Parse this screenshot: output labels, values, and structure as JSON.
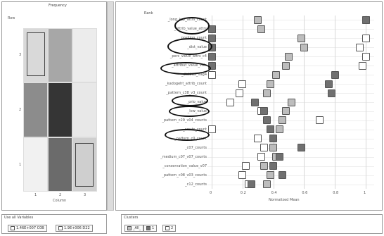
{
  "left": {
    "title": "Frequency",
    "row_axis": "Row",
    "col_axis": "Column",
    "row_ticks": [
      "3",
      "2",
      "1"
    ],
    "col_ticks": [
      "1",
      "2",
      "3"
    ],
    "heatmap": [
      [
        "#d9d9d9",
        "#a7a7a7",
        "#ececec"
      ],
      [
        "#8c8c8c",
        "#353535",
        "#e8e8e8"
      ],
      [
        "#f1f1f1",
        "#6b6b6b",
        "#cfcfcf"
      ]
    ],
    "scrollbar_label": "Use all Variables",
    "legend_items": [
      "1.46E+007 C0B",
      "1.9E+006 D22"
    ]
  },
  "right": {
    "title": "Rank",
    "x_label": "Normalized Mean",
    "x_ticks": [
      "0",
      "0.2",
      "0.4",
      "0.6",
      "0.8",
      "1"
    ],
    "row_labels": [
      "_long_key_attrs_count",
      "_attrib_value_attrs",
      "_position_count",
      "_dist_value",
      "_perc_value_attrs_c4",
      "_attribut_value_vals",
      "_distinct_flag4",
      "_kadogeht_attrib_count",
      "_pattern_c38_v3_count",
      "_prio_value",
      "_low_value",
      "_pattern_c29_v04_counts",
      "_cmsts_count",
      "_pattern_c0_count",
      "_c07_counts",
      "_medium_c07_v07_counts",
      "_conservation_value_v07",
      "_pattern_c08_v03_counts",
      "_c12_counts"
    ],
    "chart_data": {
      "type": "scatter",
      "series": [
        {
          "color": "#bdbdbd",
          "values": [
            0.3,
            0.32,
            0.58,
            0.6,
            0.5,
            0.48,
            0.42,
            0.38,
            0.36,
            0.52,
            0.48,
            0.46,
            0.44,
            0.3,
            0.4,
            0.42,
            0.34,
            0.38,
            0.36
          ]
        },
        {
          "color": "#ffffff",
          "values": [
            1.0,
            0.0,
            1.0,
            0.96,
            1.0,
            0.98,
            0.0,
            0.2,
            0.18,
            0.12,
            0.32,
            0.7,
            0.0,
            0.3,
            0.34,
            0.32,
            0.22,
            0.2,
            0.24
          ]
        },
        {
          "color": "#707070",
          "values": [
            1.0,
            0.0,
            0.0,
            0.0,
            0.0,
            0.0,
            0.8,
            0.76,
            0.78,
            0.28,
            0.34,
            0.36,
            0.38,
            0.4,
            0.58,
            0.44,
            0.4,
            0.46,
            0.26
          ]
        }
      ],
      "xlim": [
        0,
        1
      ]
    },
    "legend_title": "Clusters",
    "legend_items": [
      "_All_",
      "1",
      "2"
    ]
  }
}
